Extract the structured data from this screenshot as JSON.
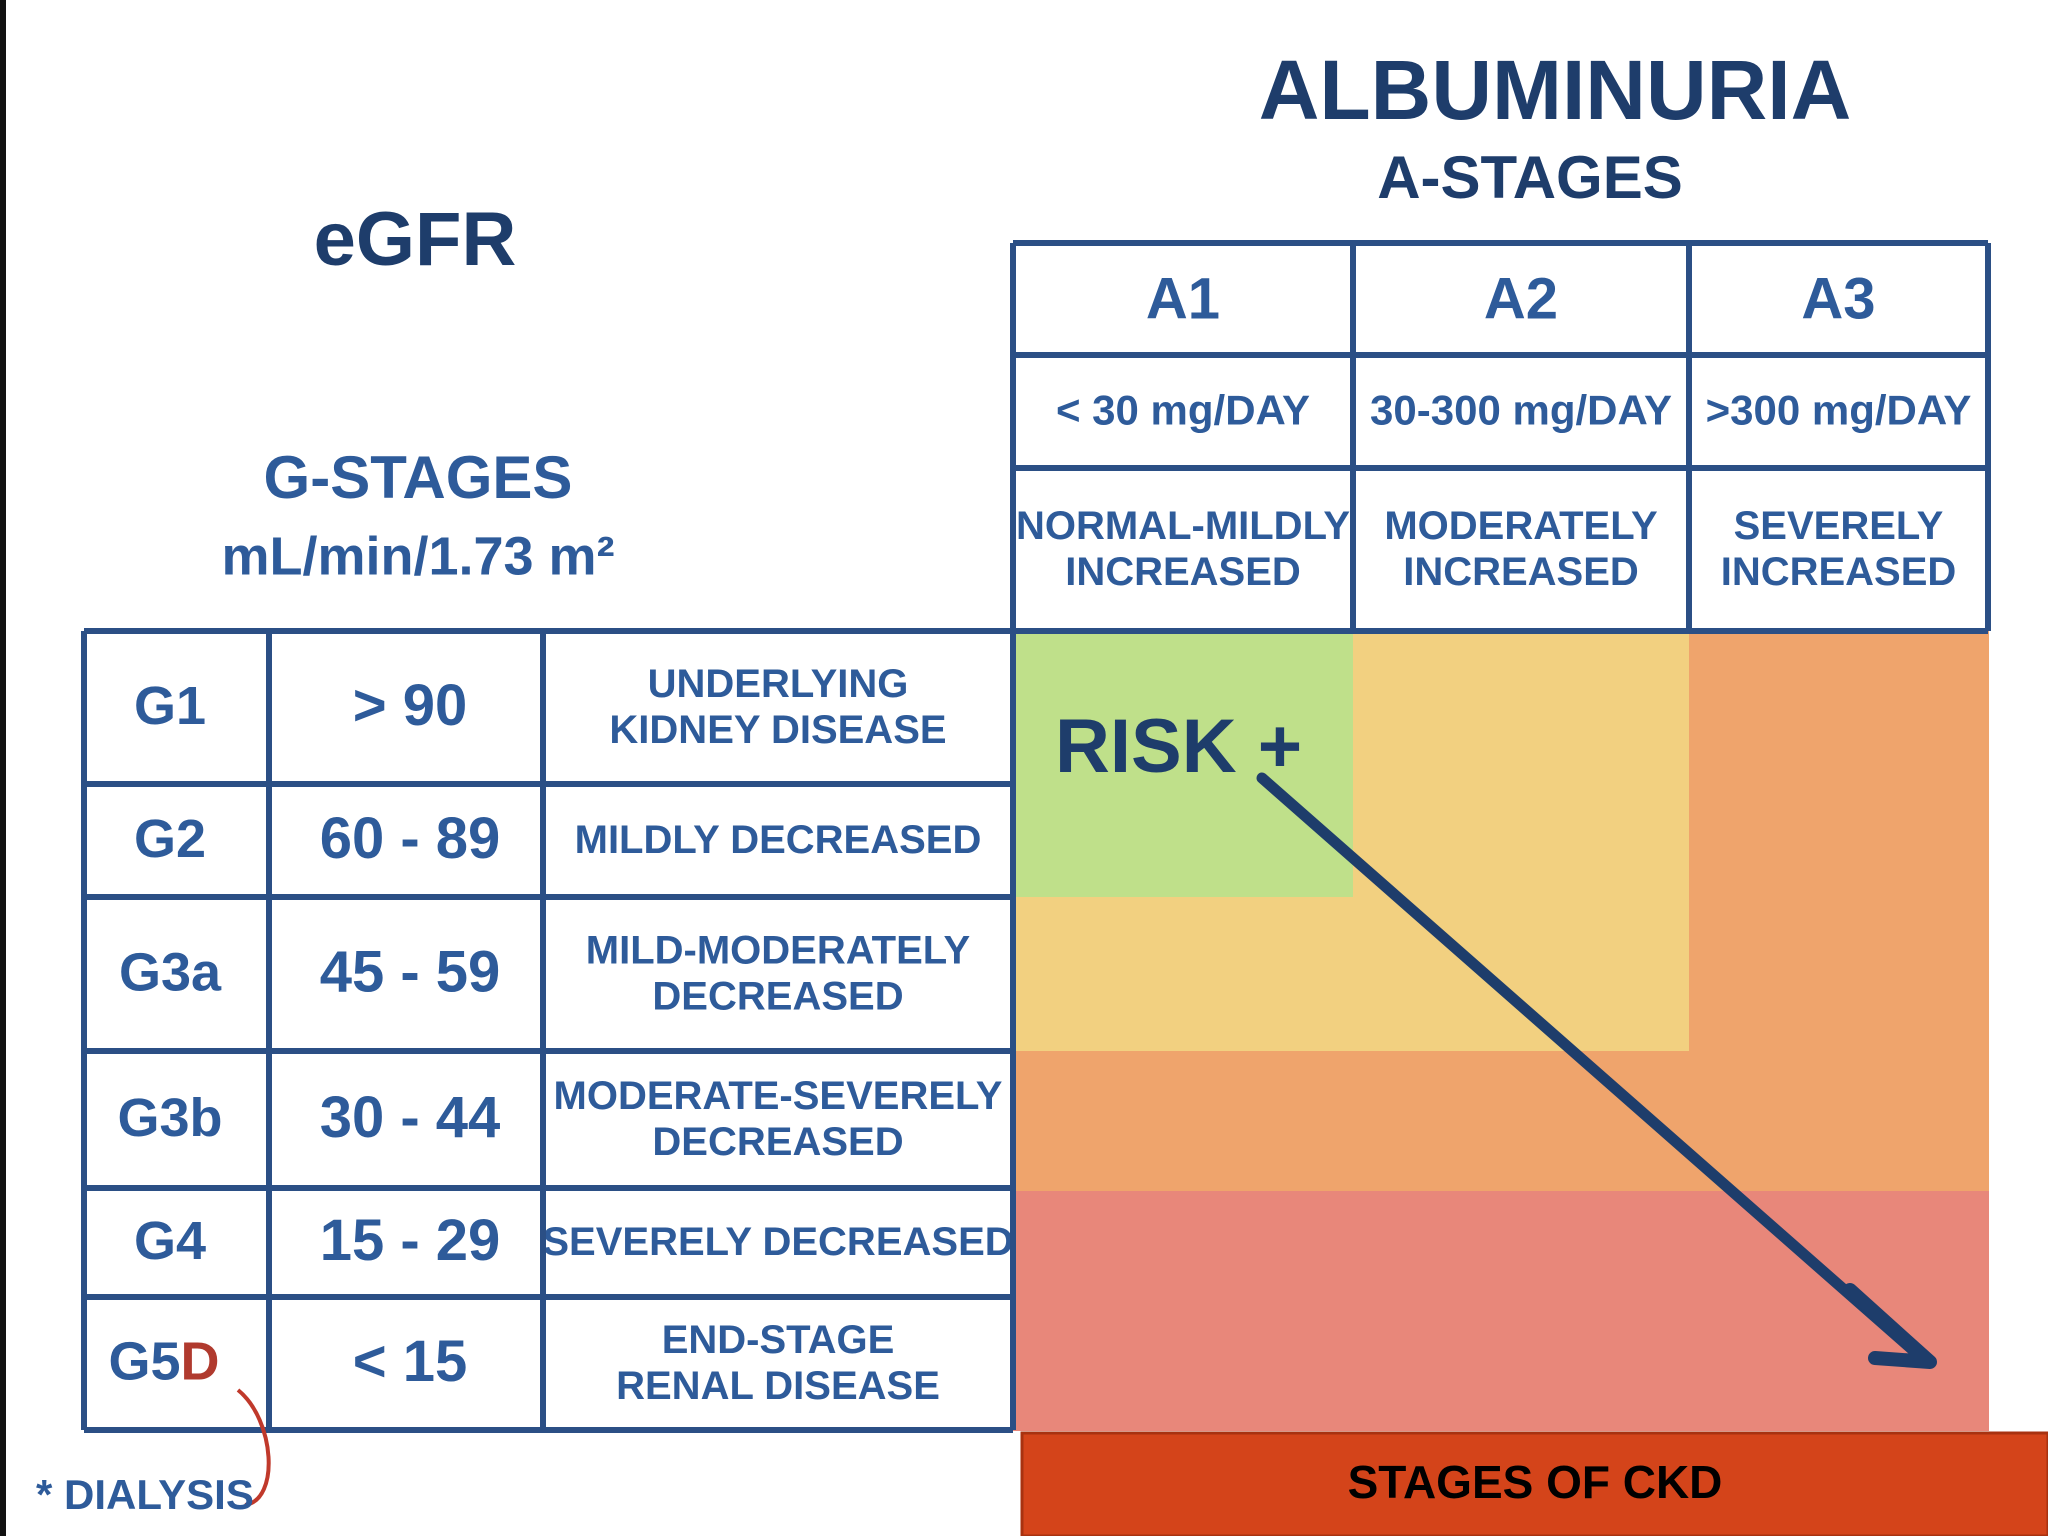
{
  "title_left": "eGFR",
  "g_stages": {
    "title": "G-STAGES",
    "unit": "mL/min/1.73 m²"
  },
  "albuminuria": {
    "title": "ALBUMINURIA",
    "subtitle": "A-STAGES"
  },
  "a_columns": [
    {
      "stage": "A1",
      "range": "< 30 mg/DAY",
      "description": [
        "NORMAL-MILDLY",
        "INCREASED"
      ]
    },
    {
      "stage": "A2",
      "range": "30-300 mg/DAY",
      "description": [
        "MODERATELY",
        "INCREASED"
      ]
    },
    {
      "stage": "A3",
      "range": ">300 mg/DAY",
      "description": [
        "SEVERELY",
        "INCREASED"
      ]
    }
  ],
  "g_rows": [
    {
      "stage": "G1",
      "range": "> 90",
      "description": [
        "UNDERLYING",
        "KIDNEY DISEASE"
      ]
    },
    {
      "stage": "G2",
      "range": "60 - 89",
      "description": [
        "MILDLY DECREASED"
      ]
    },
    {
      "stage": "G3a",
      "range": "45 - 59",
      "description": [
        "MILD-MODERATELY",
        "DECREASED"
      ]
    },
    {
      "stage": "G3b",
      "range": "30 - 44",
      "description": [
        "MODERATE-SEVERELY",
        "DECREASED"
      ]
    },
    {
      "stage": "G4",
      "range": "15 - 29",
      "description": [
        "SEVERELY DECREASED"
      ]
    },
    {
      "stage": "G5",
      "stage_suffix": "D",
      "range": "< 15",
      "description": [
        "END-STAGE",
        "RENAL DISEASE"
      ]
    }
  ],
  "footnote": "* DIALYSIS",
  "risk_label": "RISK +",
  "banner": "STAGES OF CKD"
}
